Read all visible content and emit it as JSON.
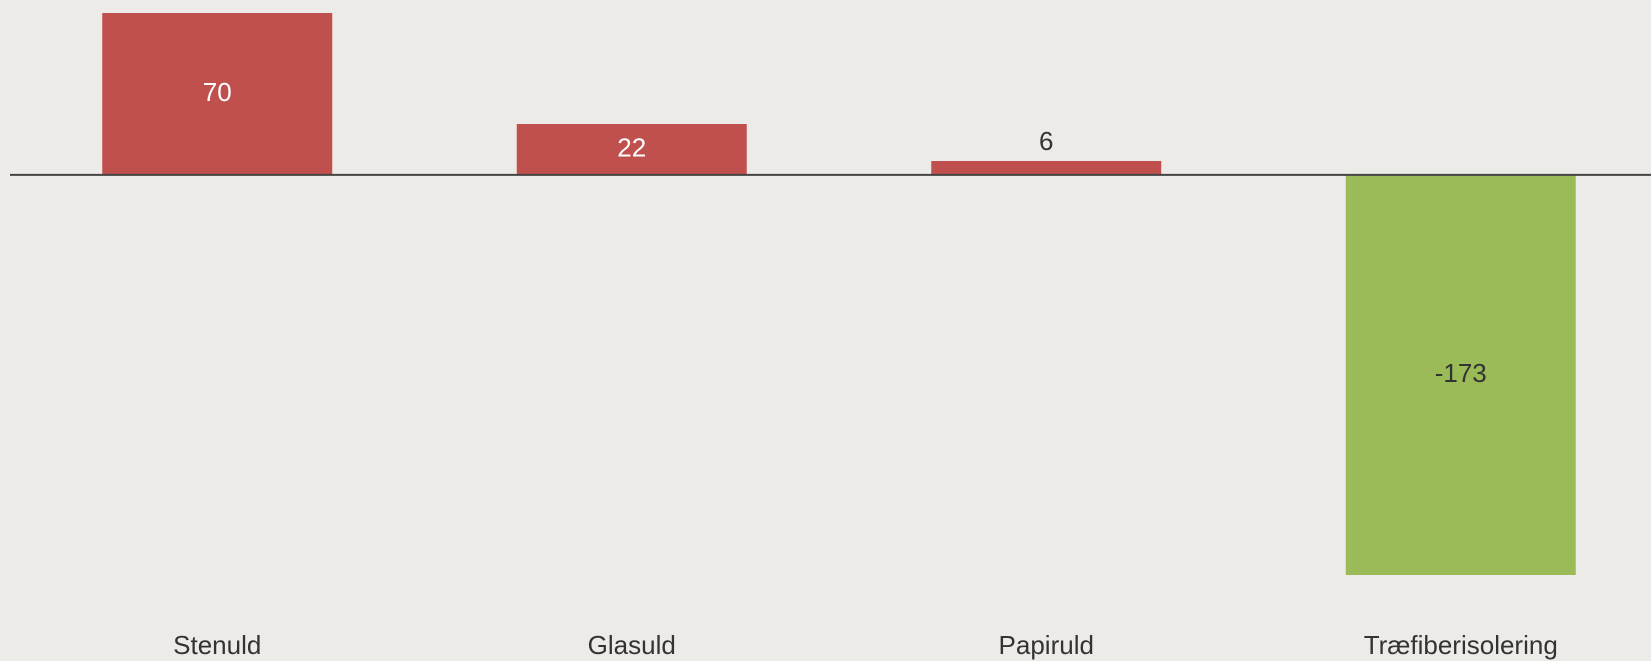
{
  "chart_data": {
    "type": "bar",
    "categories": [
      "Stenuld",
      "Glasuld",
      "Papiruld",
      "Træfiberisolering"
    ],
    "values": [
      70,
      22,
      6,
      -173
    ],
    "colors": [
      "#c0504d",
      "#c0504d",
      "#c0504d",
      "#9bbb59"
    ]
  }
}
